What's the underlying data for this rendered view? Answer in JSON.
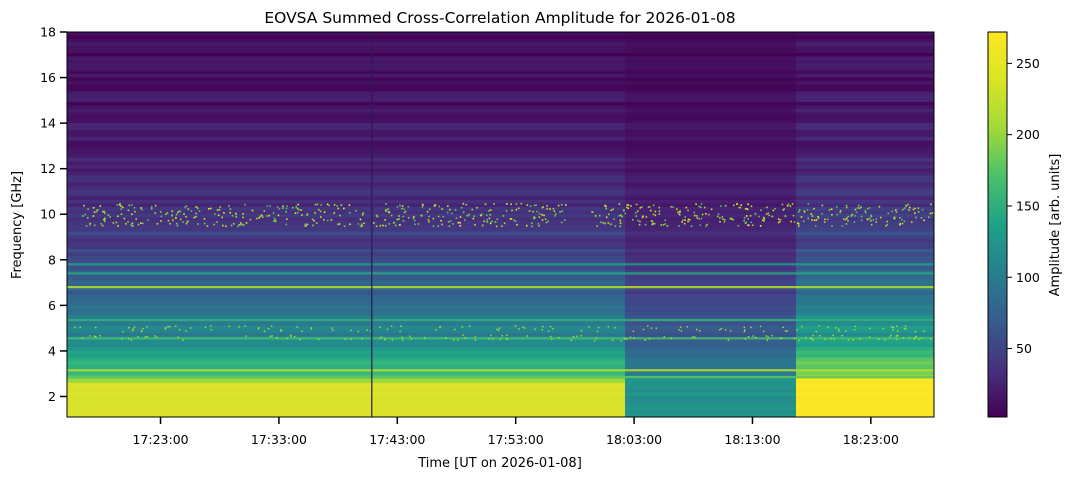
{
  "chart_data": {
    "type": "heatmap",
    "title": "EOVSA Summed Cross-Correlation Amplitude for 2026-01-08",
    "xlabel": "Time [UT on 2026-01-08]",
    "ylabel": "Frequency [GHz]",
    "x_tick_labels": [
      "17:23:00",
      "17:33:00",
      "17:43:00",
      "17:53:00",
      "18:03:00",
      "18:13:00",
      "18:23:00"
    ],
    "x_range": [
      "17:15:06",
      "18:28:20"
    ],
    "y_ticks": [
      2,
      4,
      6,
      8,
      10,
      12,
      14,
      16,
      18
    ],
    "y_range": [
      1.1,
      18
    ],
    "colorbar": {
      "label": "Amplitude [arb. units]",
      "ticks": [
        50,
        100,
        150,
        200,
        250
      ],
      "range": [
        2,
        272
      ],
      "colormap": "viridis"
    },
    "grid": false
  }
}
